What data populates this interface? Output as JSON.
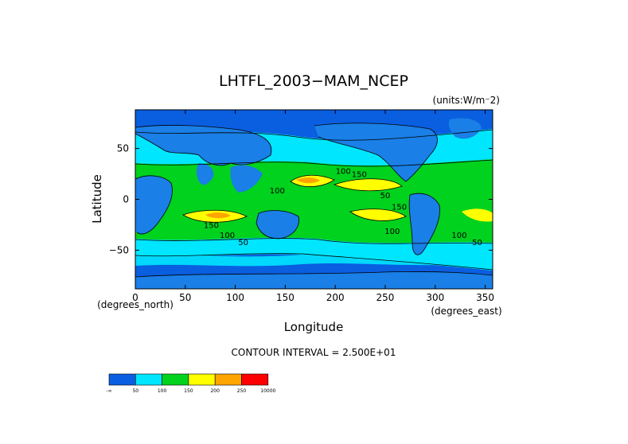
{
  "chart_data": {
    "type": "heatmap",
    "title": "LHTFL_2003−MAM_NCEP",
    "units_label": "(units:W/m⁻2)",
    "xlabel": "Longitude",
    "ylabel": "Latitude",
    "x_units_note": "(degrees_east)",
    "y_units_note": "(degrees_north)",
    "xlim": [
      0,
      357.5
    ],
    "ylim": [
      -88,
      88
    ],
    "x_ticks": [
      "0",
      "50",
      "100",
      "150",
      "200",
      "250",
      "300",
      "350"
    ],
    "x_tick_values": [
      0,
      50,
      100,
      150,
      200,
      250,
      300,
      350
    ],
    "y_ticks": [
      "50",
      "0",
      "−50"
    ],
    "y_tick_values": [
      50,
      0,
      -50
    ],
    "contour_interval_text": "CONTOUR INTERVAL = 2.500E+01",
    "contour_labels": [
      {
        "text": "100",
        "x": 208,
        "y": 25
      },
      {
        "text": "150",
        "x": 224,
        "y": 22
      },
      {
        "text": "100",
        "x": 142,
        "y": 6
      },
      {
        "text": "50",
        "x": 250,
        "y": 1
      },
      {
        "text": "150",
        "x": 264,
        "y": -10
      },
      {
        "text": "150",
        "x": 76,
        "y": -28
      },
      {
        "text": "100",
        "x": 92,
        "y": -38
      },
      {
        "text": "50",
        "x": 108,
        "y": -45
      },
      {
        "text": "100",
        "x": 257,
        "y": -34
      },
      {
        "text": "100",
        "x": 324,
        "y": -38
      },
      {
        "text": "50",
        "x": 342,
        "y": -45
      }
    ],
    "colorbar": {
      "levels": [
        "-∞",
        "50",
        "100",
        "150",
        "200",
        "250",
        "10000"
      ],
      "colors": [
        "#0a5ee0",
        "#00e6ff",
        "#00d21e",
        "#ffff00",
        "#ffa500",
        "#ff0000"
      ]
    },
    "land_color": "#1a7fe6"
  }
}
